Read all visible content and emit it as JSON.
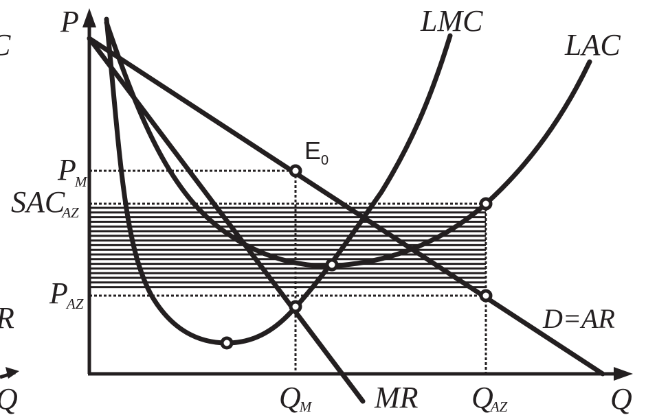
{
  "axes": {
    "y_label": "P",
    "x_label": "Q"
  },
  "curves": {
    "lmc": "LMC",
    "lac": "LAC",
    "mr": "MR",
    "demand_main": "D=AR",
    "demand_sub": ""
  },
  "points": {
    "equilibrium_main": "E",
    "equilibrium_sub": "0"
  },
  "price_labels": {
    "pm_main": "P",
    "pm_sub": "M",
    "sac_main": "SAC",
    "sac_sub": "AZ",
    "paz_main": "P",
    "paz_sub": "AZ"
  },
  "quantity_labels": {
    "qm_main": "Q",
    "qm_sub": "M",
    "qaz_main": "Q",
    "qaz_sub": "AZ"
  },
  "clipped_left": {
    "top": "C",
    "middle": "R",
    "bottom": "Q"
  },
  "colors": {
    "ink": "#231f20",
    "background": "#ffffff"
  }
}
